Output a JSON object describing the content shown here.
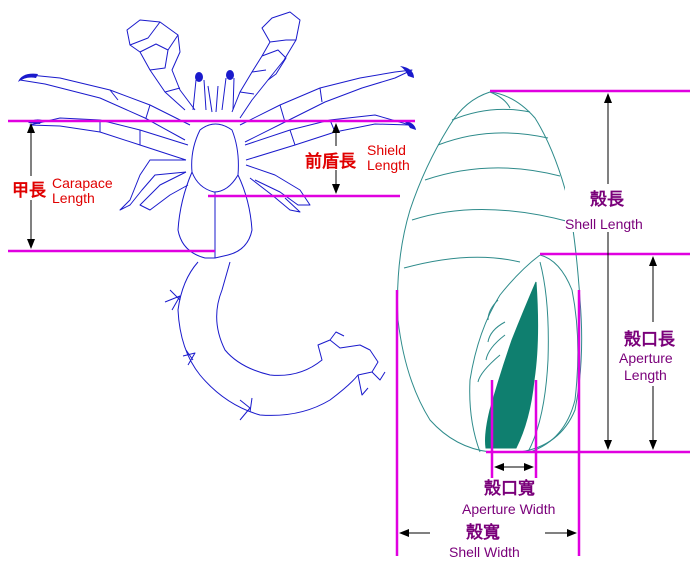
{
  "colors": {
    "body_outline": "#1a1acc",
    "shell_outline": "#2e8b8b",
    "aperture_fill": "#0f7f6f",
    "measure_line": "#e000e0",
    "label_red": "#e00000",
    "label_purple": "#7a007a",
    "arrow": "#000000"
  },
  "labels": {
    "carapace_zh": "甲長",
    "carapace_en1": "Carapace",
    "carapace_en2": "Length",
    "shield_zh": "前盾長",
    "shield_en1": "Shield",
    "shield_en2": "Length",
    "shell_length_zh": "殼長",
    "shell_length_en": "Shell Length",
    "aperture_length_zh": "殼口長",
    "aperture_length_en1": "Aperture",
    "aperture_length_en2": "Length",
    "aperture_width_zh": "殼口寬",
    "aperture_width_en": "Aperture Width",
    "shell_width_zh": "殼寬",
    "shell_width_en": "Shell Width"
  }
}
